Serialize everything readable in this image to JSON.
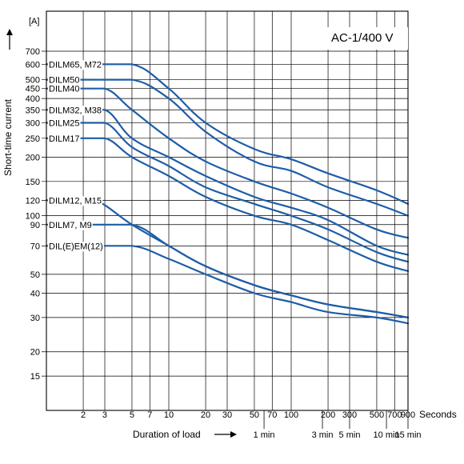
{
  "chart_data": {
    "type": "line",
    "title": "AC-1/400 V",
    "ylabel": "Short-time current",
    "yunit": "[A]",
    "xlabel": "Duration of load",
    "xunit": "Seconds",
    "xscale": "log",
    "yscale": "log",
    "grid": true,
    "xlim": [
      1,
      900
    ],
    "ylim": [
      10,
      700
    ],
    "x_ticks": [
      {
        "value": 2,
        "label": "2"
      },
      {
        "value": 3,
        "label": "3"
      },
      {
        "value": 5,
        "label": "5"
      },
      {
        "value": 7,
        "label": "7"
      },
      {
        "value": 10,
        "label": "10"
      },
      {
        "value": 20,
        "label": "20"
      },
      {
        "value": 30,
        "label": "30"
      },
      {
        "value": 50,
        "label": "50"
      },
      {
        "value": 70,
        "label": "70"
      },
      {
        "value": 100,
        "label": "100"
      },
      {
        "value": 200,
        "label": "200"
      },
      {
        "value": 300,
        "label": "300"
      },
      {
        "value": 500,
        "label": "500"
      },
      {
        "value": 700,
        "label": "700"
      },
      {
        "value": 900,
        "label": "900"
      }
    ],
    "x_minute_ticks": [
      {
        "value": 60,
        "label": "1 min"
      },
      {
        "value": 180,
        "label": "3 min"
      },
      {
        "value": 300,
        "label": "5 min"
      },
      {
        "value": 600,
        "label": "10 min"
      },
      {
        "value": 900,
        "label": "15 min"
      }
    ],
    "y_ticks": [
      15,
      20,
      30,
      40,
      50,
      70,
      90,
      100,
      120,
      150,
      200,
      250,
      300,
      350,
      400,
      450,
      500,
      600,
      700
    ],
    "series": [
      {
        "name": "DILM65, M72",
        "points": [
          [
            1,
            600
          ],
          [
            5,
            600
          ],
          [
            10,
            450
          ],
          [
            20,
            300
          ],
          [
            50,
            220
          ],
          [
            100,
            195
          ],
          [
            200,
            165
          ],
          [
            500,
            135
          ],
          [
            900,
            115
          ]
        ]
      },
      {
        "name": "DILM50",
        "points": [
          [
            1,
            500
          ],
          [
            5,
            500
          ],
          [
            10,
            400
          ],
          [
            20,
            270
          ],
          [
            50,
            190
          ],
          [
            100,
            170
          ],
          [
            200,
            140
          ],
          [
            500,
            115
          ],
          [
            900,
            100
          ]
        ]
      },
      {
        "name": "DILM40",
        "points": [
          [
            1,
            450
          ],
          [
            3,
            450
          ],
          [
            5,
            350
          ],
          [
            10,
            250
          ],
          [
            20,
            190
          ],
          [
            50,
            150
          ],
          [
            100,
            130
          ],
          [
            200,
            110
          ],
          [
            500,
            85
          ],
          [
            900,
            77
          ]
        ]
      },
      {
        "name": "DILM32, M38",
        "points": [
          [
            1,
            350
          ],
          [
            3,
            350
          ],
          [
            5,
            250
          ],
          [
            10,
            200
          ],
          [
            20,
            160
          ],
          [
            50,
            125
          ],
          [
            100,
            110
          ],
          [
            200,
            95
          ],
          [
            500,
            70
          ],
          [
            900,
            63
          ]
        ]
      },
      {
        "name": "DILM25",
        "points": [
          [
            1,
            300
          ],
          [
            3,
            300
          ],
          [
            5,
            225
          ],
          [
            10,
            180
          ],
          [
            20,
            140
          ],
          [
            50,
            115
          ],
          [
            100,
            100
          ],
          [
            200,
            85
          ],
          [
            500,
            65
          ],
          [
            900,
            58
          ]
        ]
      },
      {
        "name": "DILM17",
        "points": [
          [
            1,
            250
          ],
          [
            3,
            250
          ],
          [
            5,
            200
          ],
          [
            10,
            160
          ],
          [
            20,
            125
          ],
          [
            50,
            100
          ],
          [
            100,
            90
          ],
          [
            200,
            75
          ],
          [
            500,
            58
          ],
          [
            900,
            52
          ]
        ]
      },
      {
        "name": "DILM12, M15",
        "points": [
          [
            1,
            120
          ],
          [
            2.5,
            120
          ],
          [
            5,
            90
          ],
          [
            10,
            70
          ],
          [
            20,
            55
          ],
          [
            50,
            44
          ],
          [
            100,
            39
          ],
          [
            200,
            35
          ],
          [
            500,
            32
          ],
          [
            900,
            30
          ]
        ]
      },
      {
        "name": "DILM7, M9",
        "points": [
          [
            1,
            90
          ],
          [
            5,
            90
          ],
          [
            10,
            70
          ],
          [
            20,
            55
          ],
          [
            50,
            44
          ],
          [
            100,
            39
          ],
          [
            200,
            35
          ],
          [
            500,
            32
          ],
          [
            900,
            30
          ]
        ]
      },
      {
        "name": "DIL(E)EM(12)",
        "points": [
          [
            1,
            70
          ],
          [
            5,
            70
          ],
          [
            10,
            60
          ],
          [
            20,
            50
          ],
          [
            50,
            40
          ],
          [
            100,
            36
          ],
          [
            200,
            32
          ],
          [
            500,
            30
          ],
          [
            900,
            28
          ]
        ]
      }
    ]
  }
}
